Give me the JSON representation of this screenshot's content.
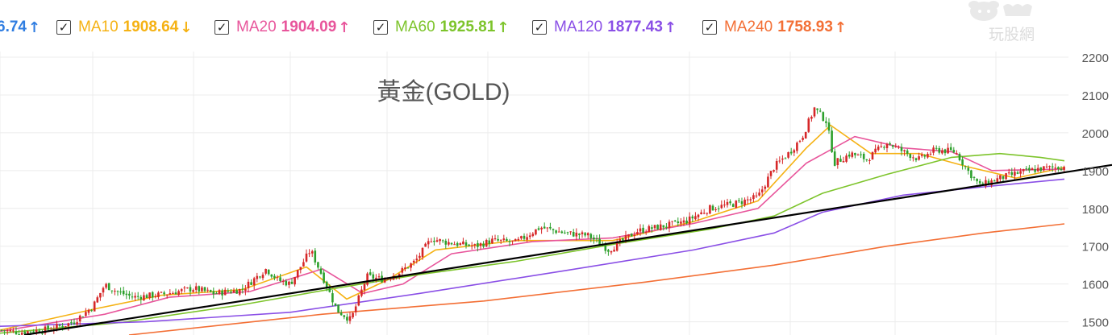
{
  "legend": {
    "items": [
      {
        "label": "",
        "value": "6.74",
        "arrow": "↑",
        "color": "#2f7de1",
        "checked": false
      },
      {
        "label": "MA10",
        "value": "1908.64",
        "arrow": "↓",
        "color": "#f5b214",
        "checked": true
      },
      {
        "label": "MA20",
        "value": "1904.09",
        "arrow": "↑",
        "color": "#e8559b",
        "checked": true
      },
      {
        "label": "MA60",
        "value": "1925.81",
        "arrow": "↑",
        "color": "#7dc42b",
        "checked": true
      },
      {
        "label": "MA120",
        "value": "1877.43",
        "arrow": "↑",
        "color": "#8a4fe6",
        "checked": true
      },
      {
        "label": "MA240",
        "value": "1758.93",
        "arrow": "↑",
        "color": "#f36f35",
        "checked": true
      }
    ]
  },
  "watermark": {
    "text": "玩股網",
    "icon": "cow-logo-icon"
  },
  "chart_data": {
    "type": "candlestick",
    "title": "黃金(GOLD)",
    "xlabel": "",
    "ylabel": "",
    "ylim": [
      1465,
      2215
    ],
    "yticks": [
      "2200",
      "2100",
      "2000",
      "1900",
      "1800",
      "1700",
      "1600",
      "1500"
    ],
    "grid": true,
    "axis_side": "right",
    "colors": {
      "up": "#d62728",
      "down": "#2ca02c",
      "trendline": "#000000"
    },
    "price_path": [
      [
        0,
        1478
      ],
      [
        25,
        1472
      ],
      [
        60,
        1480
      ],
      [
        90,
        1498
      ],
      [
        115,
        1540
      ],
      [
        130,
        1598
      ],
      [
        145,
        1580
      ],
      [
        165,
        1565
      ],
      [
        200,
        1572
      ],
      [
        240,
        1588
      ],
      [
        265,
        1575
      ],
      [
        300,
        1585
      ],
      [
        330,
        1640
      ],
      [
        345,
        1610
      ],
      [
        360,
        1600
      ],
      [
        385,
        1690
      ],
      [
        400,
        1620
      ],
      [
        418,
        1530
      ],
      [
        435,
        1505
      ],
      [
        455,
        1620
      ],
      [
        475,
        1612
      ],
      [
        495,
        1630
      ],
      [
        515,
        1660
      ],
      [
        535,
        1720
      ],
      [
        550,
        1712
      ],
      [
        570,
        1705
      ],
      [
        590,
        1700
      ],
      [
        610,
        1715
      ],
      [
        640,
        1710
      ],
      [
        670,
        1750
      ],
      [
        700,
        1735
      ],
      [
        730,
        1728
      ],
      [
        755,
        1690
      ],
      [
        790,
        1740
      ],
      [
        820,
        1752
      ],
      [
        850,
        1765
      ],
      [
        880,
        1800
      ],
      [
        910,
        1812
      ],
      [
        940,
        1830
      ],
      [
        960,
        1910
      ],
      [
        980,
        1950
      ],
      [
        995,
        1990
      ],
      [
        1010,
        2065
      ],
      [
        1025,
        2030
      ],
      [
        1035,
        1920
      ],
      [
        1055,
        1945
      ],
      [
        1075,
        1930
      ],
      [
        1100,
        1975
      ],
      [
        1120,
        1950
      ],
      [
        1140,
        1930
      ],
      [
        1160,
        1955
      ],
      [
        1185,
        1950
      ],
      [
        1200,
        1900
      ],
      [
        1215,
        1860
      ],
      [
        1240,
        1880
      ],
      [
        1265,
        1895
      ],
      [
        1290,
        1905
      ],
      [
        1320,
        1910
      ]
    ],
    "series": [
      {
        "name": "MA10",
        "color": "#f5b214",
        "points": [
          [
            0,
            1478
          ],
          [
            120,
            1535
          ],
          [
            200,
            1570
          ],
          [
            300,
            1585
          ],
          [
            380,
            1645
          ],
          [
            430,
            1560
          ],
          [
            480,
            1610
          ],
          [
            540,
            1690
          ],
          [
            640,
            1715
          ],
          [
            760,
            1715
          ],
          [
            860,
            1765
          ],
          [
            940,
            1820
          ],
          [
            1000,
            1960
          ],
          [
            1030,
            2020
          ],
          [
            1080,
            1945
          ],
          [
            1140,
            1945
          ],
          [
            1200,
            1910
          ],
          [
            1260,
            1880
          ],
          [
            1320,
            1908.64
          ]
        ]
      },
      {
        "name": "MA20",
        "color": "#e8559b",
        "points": [
          [
            0,
            1475
          ],
          [
            130,
            1520
          ],
          [
            210,
            1565
          ],
          [
            310,
            1580
          ],
          [
            400,
            1640
          ],
          [
            450,
            1575
          ],
          [
            500,
            1600
          ],
          [
            560,
            1680
          ],
          [
            660,
            1712
          ],
          [
            760,
            1722
          ],
          [
            860,
            1760
          ],
          [
            940,
            1800
          ],
          [
            1000,
            1920
          ],
          [
            1060,
            1990
          ],
          [
            1120,
            1960
          ],
          [
            1180,
            1950
          ],
          [
            1230,
            1900
          ],
          [
            1320,
            1904.09
          ]
        ]
      },
      {
        "name": "MA60",
        "color": "#7dc42b",
        "points": [
          [
            0,
            1470
          ],
          [
            150,
            1498
          ],
          [
            300,
            1545
          ],
          [
            420,
            1590
          ],
          [
            520,
            1625
          ],
          [
            640,
            1660
          ],
          [
            760,
            1705
          ],
          [
            880,
            1745
          ],
          [
            960,
            1780
          ],
          [
            1020,
            1840
          ],
          [
            1100,
            1890
          ],
          [
            1180,
            1935
          ],
          [
            1240,
            1945
          ],
          [
            1290,
            1935
          ],
          [
            1320,
            1925.81
          ]
        ]
      },
      {
        "name": "MA120",
        "color": "#8a4fe6",
        "points": [
          [
            0,
            1488
          ],
          [
            180,
            1500
          ],
          [
            360,
            1525
          ],
          [
            520,
            1575
          ],
          [
            700,
            1635
          ],
          [
            860,
            1690
          ],
          [
            960,
            1735
          ],
          [
            1020,
            1790
          ],
          [
            1120,
            1835
          ],
          [
            1220,
            1857
          ],
          [
            1320,
            1877.43
          ]
        ]
      },
      {
        "name": "MA240",
        "color": "#f36f35",
        "points": [
          [
            160,
            1465
          ],
          [
            400,
            1520
          ],
          [
            600,
            1555
          ],
          [
            800,
            1605
          ],
          [
            960,
            1650
          ],
          [
            1100,
            1700
          ],
          [
            1220,
            1735
          ],
          [
            1320,
            1758.93
          ]
        ]
      },
      {
        "name": "",
        "color": "#000000",
        "points": [
          [
            30,
            1465
          ],
          [
            1379,
            1915
          ]
        ]
      }
    ]
  }
}
